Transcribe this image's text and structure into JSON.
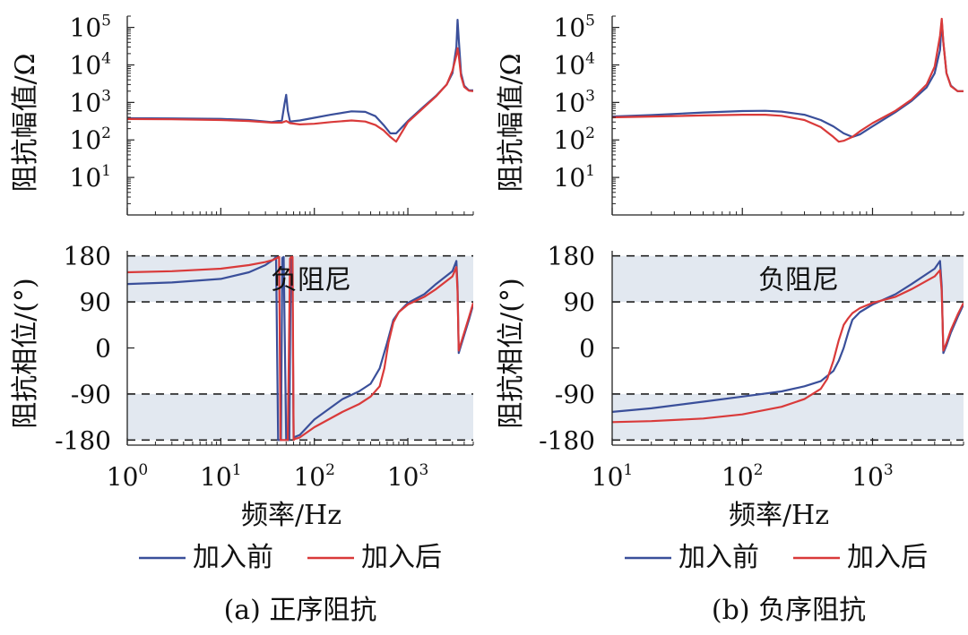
{
  "chart_data": [
    {
      "panel": "a",
      "type": "line",
      "caption": "(a) 正序阻抗",
      "xlabel": "频率/Hz",
      "xlim": [
        1,
        5000
      ],
      "x_ticks": [
        {
          "v": 1,
          "base": "10",
          "exp": "0"
        },
        {
          "v": 10,
          "base": "10",
          "exp": "1"
        },
        {
          "v": 100,
          "base": "10",
          "exp": "2"
        },
        {
          "v": 1000,
          "base": "10",
          "exp": "3"
        }
      ],
      "legend": [
        "加入前",
        "加入后"
      ],
      "magnitude": {
        "ylabel": "阻抗幅值/Ω",
        "ylim": [
          1,
          200000
        ],
        "y_ticks": [
          {
            "v": 10,
            "base": "10",
            "exp": "1"
          },
          {
            "v": 100,
            "base": "10",
            "exp": "2"
          },
          {
            "v": 1000,
            "base": "10",
            "exp": "3"
          },
          {
            "v": 10000,
            "base": "10",
            "exp": "4"
          },
          {
            "v": 100000,
            "base": "10",
            "exp": "5"
          }
        ],
        "series": [
          {
            "name": "加入前",
            "color": "#3a4f9a",
            "x": [
              1,
              3,
              10,
              20,
              35,
              45,
              48,
              50,
              52,
              55,
              70,
              100,
              150,
              250,
              350,
              450,
              550,
              650,
              750,
              1000,
              1500,
              2000,
              2600,
              3000,
              3300,
              3400,
              3500,
              3700,
              4000,
              4500,
              5000
            ],
            "y": [
              380,
              375,
              365,
              340,
              300,
              330,
              900,
              1600,
              600,
              310,
              330,
              390,
              470,
              580,
              560,
              430,
              250,
              150,
              150,
              320,
              800,
              1500,
              3000,
              6000,
              30000,
              160000,
              50000,
              6000,
              2800,
              2100,
              2100
            ]
          },
          {
            "name": "加入后",
            "color": "#d93a3a",
            "x": [
              1,
              3,
              10,
              20,
              35,
              45,
              50,
              55,
              70,
              100,
              150,
              250,
              350,
              450,
              550,
              650,
              750,
              1000,
              1500,
              2000,
              2600,
              3000,
              3300,
              3400,
              3500,
              3700,
              4000,
              4500,
              5000
            ],
            "y": [
              360,
              355,
              340,
              320,
              290,
              290,
              320,
              280,
              260,
              270,
              300,
              330,
              310,
              250,
              180,
              120,
              90,
              300,
              750,
              1450,
              3000,
              7000,
              18000,
              28000,
              18000,
              5000,
              2600,
              2050,
              2000
            ]
          }
        ]
      },
      "phase": {
        "ylabel": "阻抗相位/(°)",
        "ylim": [
          -190,
          190
        ],
        "y_ticks": [
          {
            "v": 180,
            "label": "180"
          },
          {
            "v": 90,
            "label": "90"
          },
          {
            "v": 0,
            "label": "0"
          },
          {
            "v": -90,
            "label": "-90"
          },
          {
            "v": -180,
            "label": "-180"
          }
        ],
        "dashed_lines": [
          180,
          90,
          -90,
          -180
        ],
        "shaded_bands": [
          [
            90,
            180
          ],
          [
            -180,
            -90
          ]
        ],
        "annotation": "负阻尼",
        "series": [
          {
            "name": "加入前",
            "color": "#3a4f9a",
            "x": [
              1,
              3,
              10,
              20,
              30,
              36,
              38,
              39,
              41,
              42.5,
              44,
              45.5,
              47,
              50,
              54,
              56,
              58,
              60,
              70,
              100,
              200,
              300,
              400,
              500,
              600,
              700,
              800,
              1000,
              1500,
              2000,
              3000,
              3300,
              3400,
              3500,
              3700,
              4000,
              4500,
              5000
            ],
            "y": [
              125,
              128,
              135,
              148,
              162,
              172,
              176,
              178,
              -180,
              -180,
              -180,
              176,
              178,
              -180,
              -180,
              176,
              178,
              -175,
              -170,
              -140,
              -100,
              -85,
              -70,
              -40,
              10,
              55,
              70,
              88,
              105,
              125,
              150,
              170,
              120,
              -10,
              5,
              25,
              55,
              85
            ]
          },
          {
            "name": "加入后",
            "color": "#d93a3a",
            "x": [
              1,
              3,
              10,
              20,
              30,
              36,
              38,
              40,
              42,
              43.5,
              45,
              48,
              52,
              55,
              57,
              58.5,
              60,
              62,
              70,
              100,
              200,
              300,
              400,
              500,
              560,
              620,
              700,
              800,
              1000,
              1500,
              2000,
              3000,
              3300,
              3400,
              3500,
              3700,
              4000,
              4500,
              5000
            ],
            "y": [
              148,
              150,
              155,
              162,
              168,
              172,
              174,
              176,
              178,
              -180,
              -180,
              -180,
              -180,
              175,
              178,
              178,
              -180,
              -178,
              -175,
              -155,
              -125,
              -110,
              -95,
              -75,
              -40,
              10,
              50,
              70,
              85,
              100,
              115,
              140,
              158,
              110,
              -5,
              10,
              30,
              60,
              88
            ]
          }
        ]
      }
    },
    {
      "panel": "b",
      "type": "line",
      "caption": "(b) 负序阻抗",
      "xlabel": "频率/Hz",
      "xlim": [
        10,
        5000
      ],
      "x_ticks": [
        {
          "v": 10,
          "base": "10",
          "exp": "1"
        },
        {
          "v": 100,
          "base": "10",
          "exp": "2"
        },
        {
          "v": 1000,
          "base": "10",
          "exp": "3"
        }
      ],
      "legend": [
        "加入前",
        "加入后"
      ],
      "magnitude": {
        "ylabel": "阻抗幅值/Ω",
        "ylim": [
          1,
          200000
        ],
        "y_ticks": [
          {
            "v": 10,
            "base": "10",
            "exp": "1"
          },
          {
            "v": 100,
            "base": "10",
            "exp": "2"
          },
          {
            "v": 1000,
            "base": "10",
            "exp": "3"
          },
          {
            "v": 10000,
            "base": "10",
            "exp": "4"
          },
          {
            "v": 100000,
            "base": "10",
            "exp": "5"
          }
        ],
        "series": [
          {
            "name": "加入前",
            "color": "#3a4f9a",
            "x": [
              10,
              20,
              50,
              100,
              150,
              200,
              300,
              400,
              500,
              600,
              700,
              800,
              1000,
              1500,
              2000,
              2600,
              3000,
              3300,
              3400,
              3500,
              3700,
              4000,
              4500,
              5000
            ],
            "y": [
              420,
              460,
              540,
              590,
              600,
              570,
              470,
              340,
              230,
              150,
              120,
              140,
              230,
              550,
              1100,
              2500,
              6000,
              25000,
              150000,
              40000,
              6000,
              2800,
              2000,
              2000
            ]
          },
          {
            "name": "加入后",
            "color": "#d93a3a",
            "x": [
              10,
              20,
              50,
              100,
              150,
              200,
              300,
              400,
              500,
              550,
              600,
              700,
              800,
              1000,
              1500,
              2000,
              2600,
              3000,
              3300,
              3400,
              3500,
              3700,
              4000,
              4500,
              5000
            ],
            "y": [
              400,
              420,
              450,
              470,
              470,
              440,
              340,
              220,
              120,
              90,
              95,
              120,
              170,
              280,
              600,
              1200,
              3000,
              9000,
              60000,
              170000,
              40000,
              6000,
              2700,
              2000,
              2000
            ]
          }
        ]
      },
      "phase": {
        "ylabel": "阻抗相位/(°)",
        "ylim": [
          -190,
          190
        ],
        "y_ticks": [
          {
            "v": 180,
            "label": "180"
          },
          {
            "v": 90,
            "label": "90"
          },
          {
            "v": 0,
            "label": "0"
          },
          {
            "v": -90,
            "label": "-90"
          },
          {
            "v": -180,
            "label": "-180"
          }
        ],
        "dashed_lines": [
          180,
          90,
          -90,
          -180
        ],
        "shaded_bands": [
          [
            90,
            180
          ],
          [
            -180,
            -90
          ]
        ],
        "annotation": "负阻尼",
        "series": [
          {
            "name": "加入前",
            "color": "#3a4f9a",
            "x": [
              10,
              20,
              50,
              100,
              200,
              300,
              400,
              500,
              550,
              600,
              650,
              700,
              800,
              1000,
              1500,
              2000,
              3000,
              3300,
              3400,
              3500,
              3700,
              4000,
              4500,
              5000
            ],
            "y": [
              -125,
              -118,
              -105,
              -95,
              -85,
              -75,
              -65,
              -45,
              -25,
              0,
              30,
              55,
              70,
              85,
              105,
              125,
              155,
              170,
              120,
              -10,
              5,
              30,
              60,
              85
            ]
          },
          {
            "name": "加入后",
            "color": "#d93a3a",
            "x": [
              10,
              20,
              50,
              100,
              200,
              300,
              400,
              450,
              500,
              550,
              600,
              650,
              700,
              800,
              1000,
              1500,
              2000,
              3000,
              3300,
              3400,
              3500,
              3700,
              4000,
              4500,
              5000
            ],
            "y": [
              -145,
              -143,
              -138,
              -130,
              -115,
              -100,
              -80,
              -60,
              -25,
              15,
              45,
              58,
              68,
              78,
              88,
              100,
              115,
              140,
              152,
              110,
              -5,
              10,
              35,
              65,
              88
            ]
          }
        ]
      }
    }
  ]
}
